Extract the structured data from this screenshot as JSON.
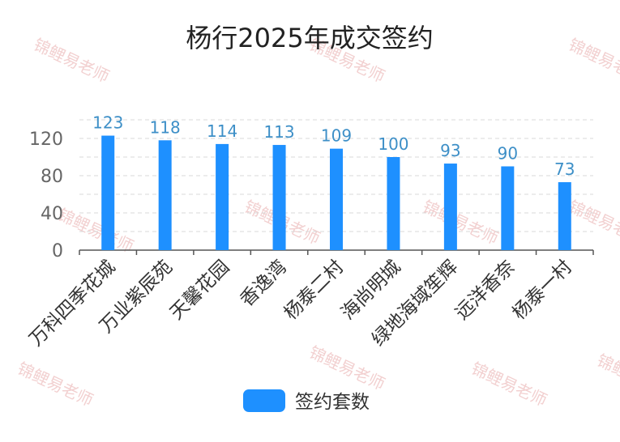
{
  "chart_data": {
    "type": "bar",
    "title": "杨行2025年成交签约",
    "categories": [
      "万科四季花城",
      "万业紫辰苑",
      "天馨花园",
      "香逸湾",
      "杨泰二村",
      "海尚明城",
      "绿地海域笙辉",
      "远洋香奈",
      "杨泰一村"
    ],
    "series": [
      {
        "name": "签约套数",
        "values": [
          123,
          118,
          114,
          113,
          109,
          100,
          93,
          90,
          73
        ]
      }
    ],
    "yticks": [
      "0",
      "40",
      "80",
      "120"
    ],
    "ylim": [
      0,
      140
    ],
    "grid": true,
    "legend": "bottom-center",
    "colors": {
      "bar": "#1e90ff",
      "label": "#3d8fc7",
      "grid": "#d8d8d8",
      "axis": "#555555"
    }
  },
  "watermark": "锦鲤易老师"
}
